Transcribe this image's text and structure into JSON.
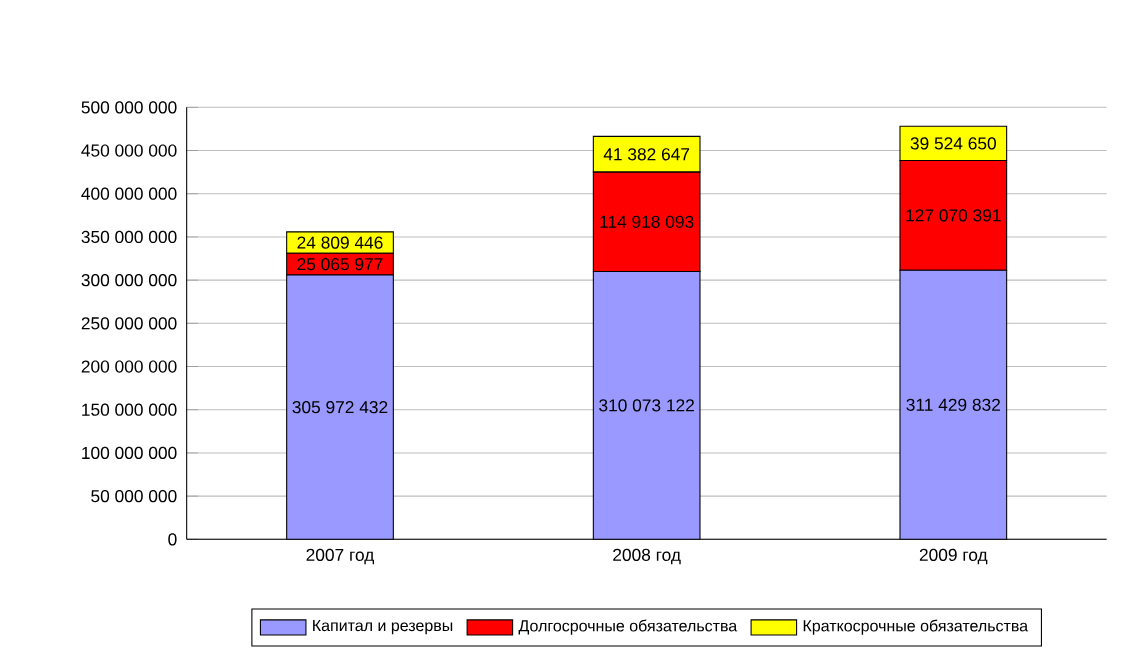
{
  "chart_data": {
    "type": "bar",
    "stacked": true,
    "categories": [
      "2007 год",
      "2008 год",
      "2009 год"
    ],
    "series": [
      {
        "name": "Капитал и резервы",
        "color": "#9999ff",
        "values": [
          305972432,
          310073122,
          311429832
        ],
        "value_labels": [
          "305 972 432",
          "310 073 122",
          "311 429 832"
        ]
      },
      {
        "name": "Долгосрочные обязательства",
        "color": "#ff0000",
        "values": [
          25065977,
          114918093,
          127070391
        ],
        "value_labels": [
          "25 065 977",
          "114 918 093",
          "127 070 391"
        ]
      },
      {
        "name": "Краткосрочные обязательства",
        "color": "#ffff00",
        "values": [
          24809446,
          41382647,
          39524650
        ],
        "value_labels": [
          "24 809 446",
          "41 382 647",
          "39 524 650"
        ]
      }
    ],
    "ylim": [
      0,
      500000000
    ],
    "yticks": [
      {
        "value": 0,
        "label": "0"
      },
      {
        "value": 50000000,
        "label": "50 000 000"
      },
      {
        "value": 100000000,
        "label": "100 000 000"
      },
      {
        "value": 150000000,
        "label": "150 000 000"
      },
      {
        "value": 200000000,
        "label": "200 000 000"
      },
      {
        "value": 250000000,
        "label": "250 000 000"
      },
      {
        "value": 300000000,
        "label": "300 000 000"
      },
      {
        "value": 350000000,
        "label": "350 000 000"
      },
      {
        "value": 400000000,
        "label": "400 000 000"
      },
      {
        "value": 450000000,
        "label": "450 000 000"
      },
      {
        "value": 500000000,
        "label": "500 000 000"
      }
    ],
    "grid": "y",
    "legend": "bottom"
  }
}
